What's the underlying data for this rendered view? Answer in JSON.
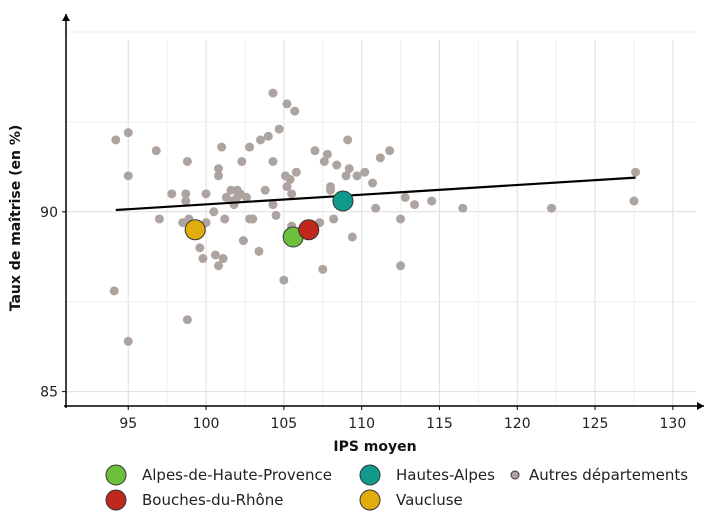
{
  "chart_data": {
    "type": "scatter",
    "xlabel": "IPS moyen",
    "ylabel": "Taux de maîtrise (en %)",
    "xlim": [
      91,
      132
    ],
    "ylim": [
      84.6,
      95.5
    ],
    "xticks": [
      95,
      100,
      105,
      110,
      115,
      120,
      125,
      130
    ],
    "yticks": [
      85,
      90
    ],
    "grid": true,
    "legend_position": "bottom",
    "regression_line": {
      "x": [
        94.2,
        127.6
      ],
      "y": [
        90.05,
        90.95
      ]
    },
    "series": [
      {
        "name": "Autres départements",
        "color": "#ada49f",
        "points": [
          [
            94.2,
            92.0
          ],
          [
            95.0,
            92.2
          ],
          [
            95.0,
            91.0
          ],
          [
            94.1,
            87.8
          ],
          [
            95.0,
            86.4
          ],
          [
            96.8,
            91.7
          ],
          [
            97.0,
            89.8
          ],
          [
            97.8,
            90.5
          ],
          [
            98.8,
            91.4
          ],
          [
            98.7,
            90.5
          ],
          [
            98.9,
            89.8
          ],
          [
            98.5,
            89.7
          ],
          [
            98.7,
            90.3
          ],
          [
            98.8,
            87.0
          ],
          [
            99.6,
            89.0
          ],
          [
            100.0,
            89.7
          ],
          [
            99.8,
            88.7
          ],
          [
            100.0,
            90.5
          ],
          [
            100.5,
            90.0
          ],
          [
            100.8,
            91.0
          ],
          [
            100.8,
            91.2
          ],
          [
            101.0,
            91.8
          ],
          [
            101.2,
            89.8
          ],
          [
            101.3,
            90.4
          ],
          [
            101.7,
            90.3
          ],
          [
            101.6,
            90.6
          ],
          [
            101.8,
            90.2
          ],
          [
            102.0,
            90.6
          ],
          [
            102.2,
            90.5
          ],
          [
            102.0,
            90.4
          ],
          [
            102.3,
            91.4
          ],
          [
            102.4,
            89.2
          ],
          [
            102.6,
            90.4
          ],
          [
            102.8,
            91.8
          ],
          [
            102.8,
            89.8
          ],
          [
            103.0,
            89.8
          ],
          [
            103.5,
            92.0
          ],
          [
            103.8,
            90.6
          ],
          [
            104.0,
            92.1
          ],
          [
            104.3,
            90.2
          ],
          [
            104.3,
            91.4
          ],
          [
            104.7,
            92.3
          ],
          [
            104.5,
            89.9
          ],
          [
            105.1,
            91.0
          ],
          [
            105.2,
            90.7
          ],
          [
            105.4,
            90.9
          ],
          [
            105.5,
            90.5
          ],
          [
            105.8,
            91.1
          ],
          [
            104.3,
            93.3
          ],
          [
            105.2,
            93.0
          ],
          [
            105.7,
            92.8
          ],
          [
            105.0,
            88.1
          ],
          [
            105.5,
            89.6
          ],
          [
            106.5,
            89.6
          ],
          [
            106.5,
            89.5
          ],
          [
            107.0,
            91.7
          ],
          [
            107.3,
            89.7
          ],
          [
            107.5,
            88.4
          ],
          [
            107.6,
            91.4
          ],
          [
            107.8,
            91.6
          ],
          [
            108.0,
            90.7
          ],
          [
            108.0,
            90.6
          ],
          [
            108.2,
            89.8
          ],
          [
            108.4,
            91.3
          ],
          [
            109.0,
            91.0
          ],
          [
            109.1,
            92.0
          ],
          [
            109.2,
            91.2
          ],
          [
            109.4,
            89.3
          ],
          [
            109.7,
            91.0
          ],
          [
            110.2,
            91.1
          ],
          [
            110.7,
            90.8
          ],
          [
            110.9,
            90.1
          ],
          [
            111.2,
            91.5
          ],
          [
            111.8,
            91.7
          ],
          [
            112.5,
            89.8
          ],
          [
            112.5,
            88.5
          ],
          [
            112.8,
            90.4
          ],
          [
            113.4,
            90.2
          ],
          [
            114.5,
            90.3
          ],
          [
            116.5,
            90.1
          ],
          [
            122.2,
            90.1
          ],
          [
            127.5,
            90.3
          ],
          [
            127.6,
            91.1
          ],
          [
            99.7,
            89.6
          ],
          [
            101.1,
            88.7
          ],
          [
            100.6,
            88.8
          ],
          [
            100.8,
            88.5
          ],
          [
            103.4,
            88.9
          ]
        ]
      },
      {
        "name": "Alpes-de-Haute-Provence",
        "color": "#6bbf3b",
        "points": [
          [
            105.6,
            89.3
          ]
        ]
      },
      {
        "name": "Bouches-du-Rhône",
        "color": "#c0281e",
        "points": [
          [
            106.6,
            89.5
          ]
        ]
      },
      {
        "name": "Hautes-Alpes",
        "color": "#0f9a8c",
        "points": [
          [
            108.8,
            90.3
          ]
        ]
      },
      {
        "name": "Vaucluse",
        "color": "#e2ac0c",
        "points": [
          [
            99.3,
            89.5
          ]
        ]
      }
    ]
  },
  "legend": {
    "items": [
      {
        "label": "Alpes-de-Haute-Provence",
        "color": "#6bbf3b"
      },
      {
        "label": "Hautes-Alpes",
        "color": "#0f9a8c"
      },
      {
        "label": "Autres départements",
        "color": "#ada49f"
      },
      {
        "label": "Bouches-du-Rhône",
        "color": "#c0281e"
      },
      {
        "label": "Vaucluse",
        "color": "#e2ac0c"
      }
    ]
  }
}
